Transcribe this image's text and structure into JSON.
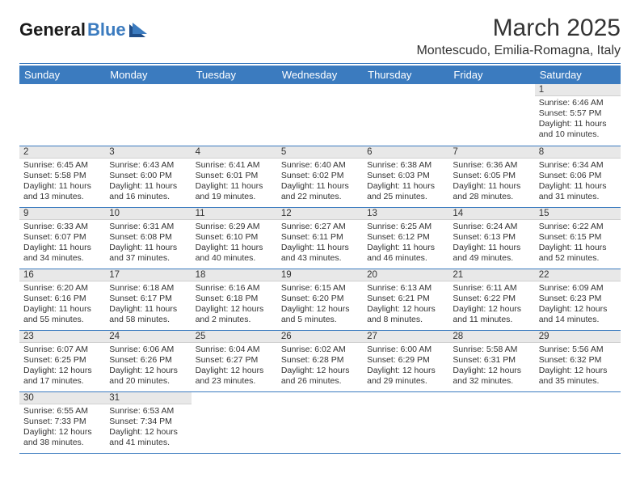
{
  "logo": {
    "part1": "General",
    "part2": "Blue"
  },
  "title": "March 2025",
  "location": "Montescudo, Emilia-Romagna, Italy",
  "colors": {
    "accent": "#3b7bbf",
    "header_bg": "#3b7bbf",
    "header_text": "#ffffff",
    "daynum_bg": "#e8e8e8",
    "border": "#3b7bbf",
    "text": "#333333",
    "bg": "#ffffff"
  },
  "fonts": {
    "title_size_pt": 22,
    "location_size_pt": 12,
    "dayheader_size_pt": 10,
    "cell_size_pt": 8
  },
  "weekdays": [
    "Sunday",
    "Monday",
    "Tuesday",
    "Wednesday",
    "Thursday",
    "Friday",
    "Saturday"
  ],
  "calendar": {
    "type": "table",
    "columns": 7,
    "rows": 6,
    "cells": [
      [
        null,
        null,
        null,
        null,
        null,
        null,
        {
          "n": "1",
          "sunrise": "Sunrise: 6:46 AM",
          "sunset": "Sunset: 5:57 PM",
          "daylight": "Daylight: 11 hours and 10 minutes."
        }
      ],
      [
        {
          "n": "2",
          "sunrise": "Sunrise: 6:45 AM",
          "sunset": "Sunset: 5:58 PM",
          "daylight": "Daylight: 11 hours and 13 minutes."
        },
        {
          "n": "3",
          "sunrise": "Sunrise: 6:43 AM",
          "sunset": "Sunset: 6:00 PM",
          "daylight": "Daylight: 11 hours and 16 minutes."
        },
        {
          "n": "4",
          "sunrise": "Sunrise: 6:41 AM",
          "sunset": "Sunset: 6:01 PM",
          "daylight": "Daylight: 11 hours and 19 minutes."
        },
        {
          "n": "5",
          "sunrise": "Sunrise: 6:40 AM",
          "sunset": "Sunset: 6:02 PM",
          "daylight": "Daylight: 11 hours and 22 minutes."
        },
        {
          "n": "6",
          "sunrise": "Sunrise: 6:38 AM",
          "sunset": "Sunset: 6:03 PM",
          "daylight": "Daylight: 11 hours and 25 minutes."
        },
        {
          "n": "7",
          "sunrise": "Sunrise: 6:36 AM",
          "sunset": "Sunset: 6:05 PM",
          "daylight": "Daylight: 11 hours and 28 minutes."
        },
        {
          "n": "8",
          "sunrise": "Sunrise: 6:34 AM",
          "sunset": "Sunset: 6:06 PM",
          "daylight": "Daylight: 11 hours and 31 minutes."
        }
      ],
      [
        {
          "n": "9",
          "sunrise": "Sunrise: 6:33 AM",
          "sunset": "Sunset: 6:07 PM",
          "daylight": "Daylight: 11 hours and 34 minutes."
        },
        {
          "n": "10",
          "sunrise": "Sunrise: 6:31 AM",
          "sunset": "Sunset: 6:08 PM",
          "daylight": "Daylight: 11 hours and 37 minutes."
        },
        {
          "n": "11",
          "sunrise": "Sunrise: 6:29 AM",
          "sunset": "Sunset: 6:10 PM",
          "daylight": "Daylight: 11 hours and 40 minutes."
        },
        {
          "n": "12",
          "sunrise": "Sunrise: 6:27 AM",
          "sunset": "Sunset: 6:11 PM",
          "daylight": "Daylight: 11 hours and 43 minutes."
        },
        {
          "n": "13",
          "sunrise": "Sunrise: 6:25 AM",
          "sunset": "Sunset: 6:12 PM",
          "daylight": "Daylight: 11 hours and 46 minutes."
        },
        {
          "n": "14",
          "sunrise": "Sunrise: 6:24 AM",
          "sunset": "Sunset: 6:13 PM",
          "daylight": "Daylight: 11 hours and 49 minutes."
        },
        {
          "n": "15",
          "sunrise": "Sunrise: 6:22 AM",
          "sunset": "Sunset: 6:15 PM",
          "daylight": "Daylight: 11 hours and 52 minutes."
        }
      ],
      [
        {
          "n": "16",
          "sunrise": "Sunrise: 6:20 AM",
          "sunset": "Sunset: 6:16 PM",
          "daylight": "Daylight: 11 hours and 55 minutes."
        },
        {
          "n": "17",
          "sunrise": "Sunrise: 6:18 AM",
          "sunset": "Sunset: 6:17 PM",
          "daylight": "Daylight: 11 hours and 58 minutes."
        },
        {
          "n": "18",
          "sunrise": "Sunrise: 6:16 AM",
          "sunset": "Sunset: 6:18 PM",
          "daylight": "Daylight: 12 hours and 2 minutes."
        },
        {
          "n": "19",
          "sunrise": "Sunrise: 6:15 AM",
          "sunset": "Sunset: 6:20 PM",
          "daylight": "Daylight: 12 hours and 5 minutes."
        },
        {
          "n": "20",
          "sunrise": "Sunrise: 6:13 AM",
          "sunset": "Sunset: 6:21 PM",
          "daylight": "Daylight: 12 hours and 8 minutes."
        },
        {
          "n": "21",
          "sunrise": "Sunrise: 6:11 AM",
          "sunset": "Sunset: 6:22 PM",
          "daylight": "Daylight: 12 hours and 11 minutes."
        },
        {
          "n": "22",
          "sunrise": "Sunrise: 6:09 AM",
          "sunset": "Sunset: 6:23 PM",
          "daylight": "Daylight: 12 hours and 14 minutes."
        }
      ],
      [
        {
          "n": "23",
          "sunrise": "Sunrise: 6:07 AM",
          "sunset": "Sunset: 6:25 PM",
          "daylight": "Daylight: 12 hours and 17 minutes."
        },
        {
          "n": "24",
          "sunrise": "Sunrise: 6:06 AM",
          "sunset": "Sunset: 6:26 PM",
          "daylight": "Daylight: 12 hours and 20 minutes."
        },
        {
          "n": "25",
          "sunrise": "Sunrise: 6:04 AM",
          "sunset": "Sunset: 6:27 PM",
          "daylight": "Daylight: 12 hours and 23 minutes."
        },
        {
          "n": "26",
          "sunrise": "Sunrise: 6:02 AM",
          "sunset": "Sunset: 6:28 PM",
          "daylight": "Daylight: 12 hours and 26 minutes."
        },
        {
          "n": "27",
          "sunrise": "Sunrise: 6:00 AM",
          "sunset": "Sunset: 6:29 PM",
          "daylight": "Daylight: 12 hours and 29 minutes."
        },
        {
          "n": "28",
          "sunrise": "Sunrise: 5:58 AM",
          "sunset": "Sunset: 6:31 PM",
          "daylight": "Daylight: 12 hours and 32 minutes."
        },
        {
          "n": "29",
          "sunrise": "Sunrise: 5:56 AM",
          "sunset": "Sunset: 6:32 PM",
          "daylight": "Daylight: 12 hours and 35 minutes."
        }
      ],
      [
        {
          "n": "30",
          "sunrise": "Sunrise: 6:55 AM",
          "sunset": "Sunset: 7:33 PM",
          "daylight": "Daylight: 12 hours and 38 minutes."
        },
        {
          "n": "31",
          "sunrise": "Sunrise: 6:53 AM",
          "sunset": "Sunset: 7:34 PM",
          "daylight": "Daylight: 12 hours and 41 minutes."
        },
        null,
        null,
        null,
        null,
        null
      ]
    ]
  }
}
